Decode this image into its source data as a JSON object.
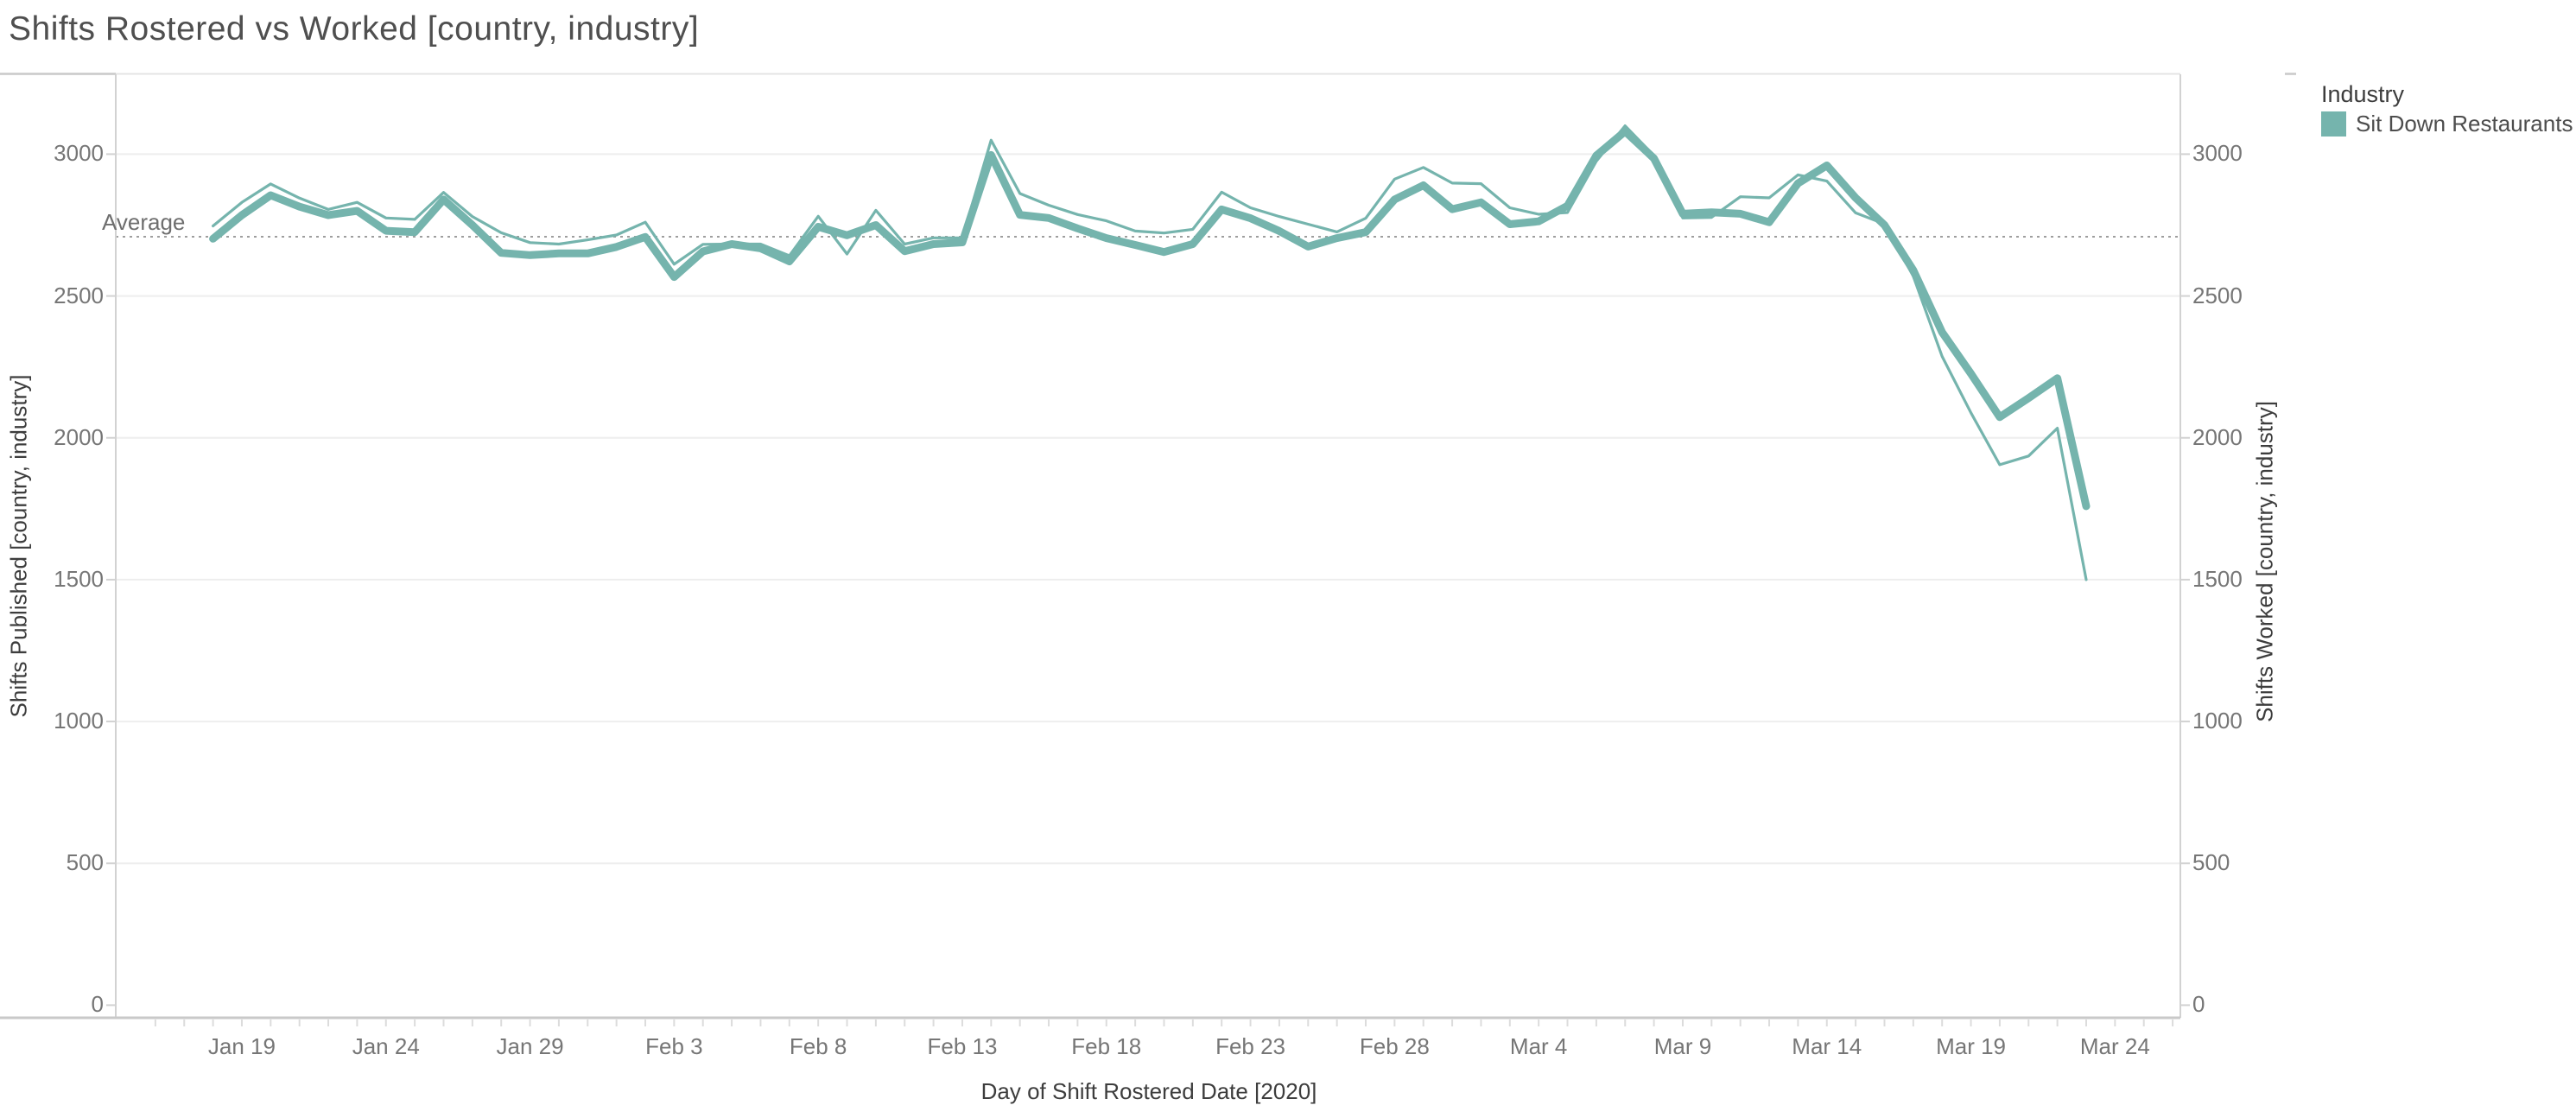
{
  "title": "Shifts Rostered vs Worked [country, industry]",
  "average_label": "Average",
  "legend": {
    "title": "Industry",
    "items": [
      {
        "label": "Sit Down Restaurants",
        "color": "#75b4ad"
      }
    ]
  },
  "axes": {
    "left": {
      "title": "Shifts Published [country, industry]",
      "ticks": [
        0,
        500,
        1000,
        1500,
        2000,
        2500,
        3000
      ]
    },
    "right": {
      "title": "Shifts Worked [country, industry]",
      "ticks": [
        0,
        500,
        1000,
        1500,
        2000,
        2500,
        3000
      ]
    },
    "x": {
      "title": "Day of Shift Rostered Date [2020]",
      "tick_labels": [
        "Jan 19",
        "Jan 24",
        "Jan 29",
        "Feb 3",
        "Feb 8",
        "Feb 13",
        "Feb 18",
        "Feb 23",
        "Feb 28",
        "Mar 4",
        "Mar 9",
        "Mar 14",
        "Mar 19",
        "Mar 24"
      ],
      "tick_day_index": [
        1,
        6,
        11,
        16,
        21,
        26,
        31,
        36,
        41,
        46,
        51,
        56,
        61,
        66
      ]
    }
  },
  "colors": {
    "line": "#75b4ad",
    "grid": "#eeeeee",
    "axis_line": "#d2d2d2",
    "bottom_border": "#c9c9c9",
    "day_tick": "#dcdcdc",
    "average_line": "#9e9e9e",
    "divider": "#e4e4e4"
  },
  "chart_data": {
    "type": "line",
    "title": "Shifts Rostered vs Worked [country, industry]",
    "xlabel": "Day of Shift Rostered Date [2020]",
    "ylabel_left": "Shifts Published [country, industry]",
    "ylabel_right": "Shifts Worked [country, industry]",
    "ylim": [
      0,
      3280
    ],
    "grid": true,
    "legend_position": "top-right",
    "average_line_value": 2709,
    "x": [
      "Jan 18",
      "Jan 19",
      "Jan 20",
      "Jan 21",
      "Jan 22",
      "Jan 23",
      "Jan 24",
      "Jan 25",
      "Jan 26",
      "Jan 27",
      "Jan 28",
      "Jan 29",
      "Jan 30",
      "Jan 31",
      "Feb 1",
      "Feb 2",
      "Feb 3",
      "Feb 4",
      "Feb 5",
      "Feb 6",
      "Feb 7",
      "Feb 8",
      "Feb 9",
      "Feb 10",
      "Feb 11",
      "Feb 12",
      "Feb 13",
      "Feb 14",
      "Feb 15",
      "Feb 16",
      "Feb 17",
      "Feb 18",
      "Feb 19",
      "Feb 20",
      "Feb 21",
      "Feb 22",
      "Feb 23",
      "Feb 24",
      "Feb 25",
      "Feb 26",
      "Feb 27",
      "Feb 28",
      "Feb 29",
      "Mar 1",
      "Mar 2",
      "Mar 3",
      "Mar 4",
      "Mar 5",
      "Mar 6",
      "Mar 7",
      "Mar 8",
      "Mar 9",
      "Mar 10",
      "Mar 11",
      "Mar 12",
      "Mar 13",
      "Mar 14",
      "Mar 15",
      "Mar 16",
      "Mar 17",
      "Mar 18",
      "Mar 19",
      "Mar 20",
      "Mar 21",
      "Mar 22",
      "Mar 23"
    ],
    "series": [
      {
        "name": "Shifts Worked [country, industry]",
        "axis": "right",
        "style": "thin",
        "stroke_width": 3.2,
        "values": [
          2747,
          2830,
          2895,
          2845,
          2805,
          2830,
          2775,
          2770,
          2865,
          2780,
          2723,
          2688,
          2683,
          2698,
          2715,
          2760,
          2612,
          2682,
          2683,
          2683,
          2642,
          2781,
          2648,
          2802,
          2683,
          2705,
          2705,
          3049,
          2861,
          2820,
          2787,
          2765,
          2729,
          2722,
          2735,
          2866,
          2811,
          2780,
          2753,
          2726,
          2774,
          2912,
          2953,
          2898,
          2896,
          2811,
          2788,
          2794,
          2975,
          3100,
          2995,
          2775,
          2777,
          2850,
          2846,
          2927,
          2905,
          2793,
          2754,
          2570,
          2287,
          2088,
          1905,
          1936,
          2034,
          1500
        ]
      },
      {
        "name": "Shifts Published [country, industry]",
        "axis": "left",
        "style": "thick",
        "stroke_width": 9,
        "values": [
          2702,
          2785,
          2855,
          2815,
          2785,
          2800,
          2730,
          2725,
          2840,
          2750,
          2652,
          2644,
          2650,
          2650,
          2673,
          2708,
          2567,
          2657,
          2683,
          2668,
          2622,
          2744,
          2714,
          2750,
          2658,
          2683,
          2689,
          2997,
          2786,
          2775,
          2738,
          2704,
          2680,
          2655,
          2683,
          2805,
          2774,
          2729,
          2674,
          2704,
          2725,
          2840,
          2890,
          2806,
          2830,
          2753,
          2763,
          2818,
          2995,
          3080,
          2985,
          2790,
          2795,
          2790,
          2760,
          2897,
          2960,
          2846,
          2750,
          2591,
          2372,
          2226,
          2073,
          2140,
          2210,
          1759
        ]
      }
    ]
  }
}
